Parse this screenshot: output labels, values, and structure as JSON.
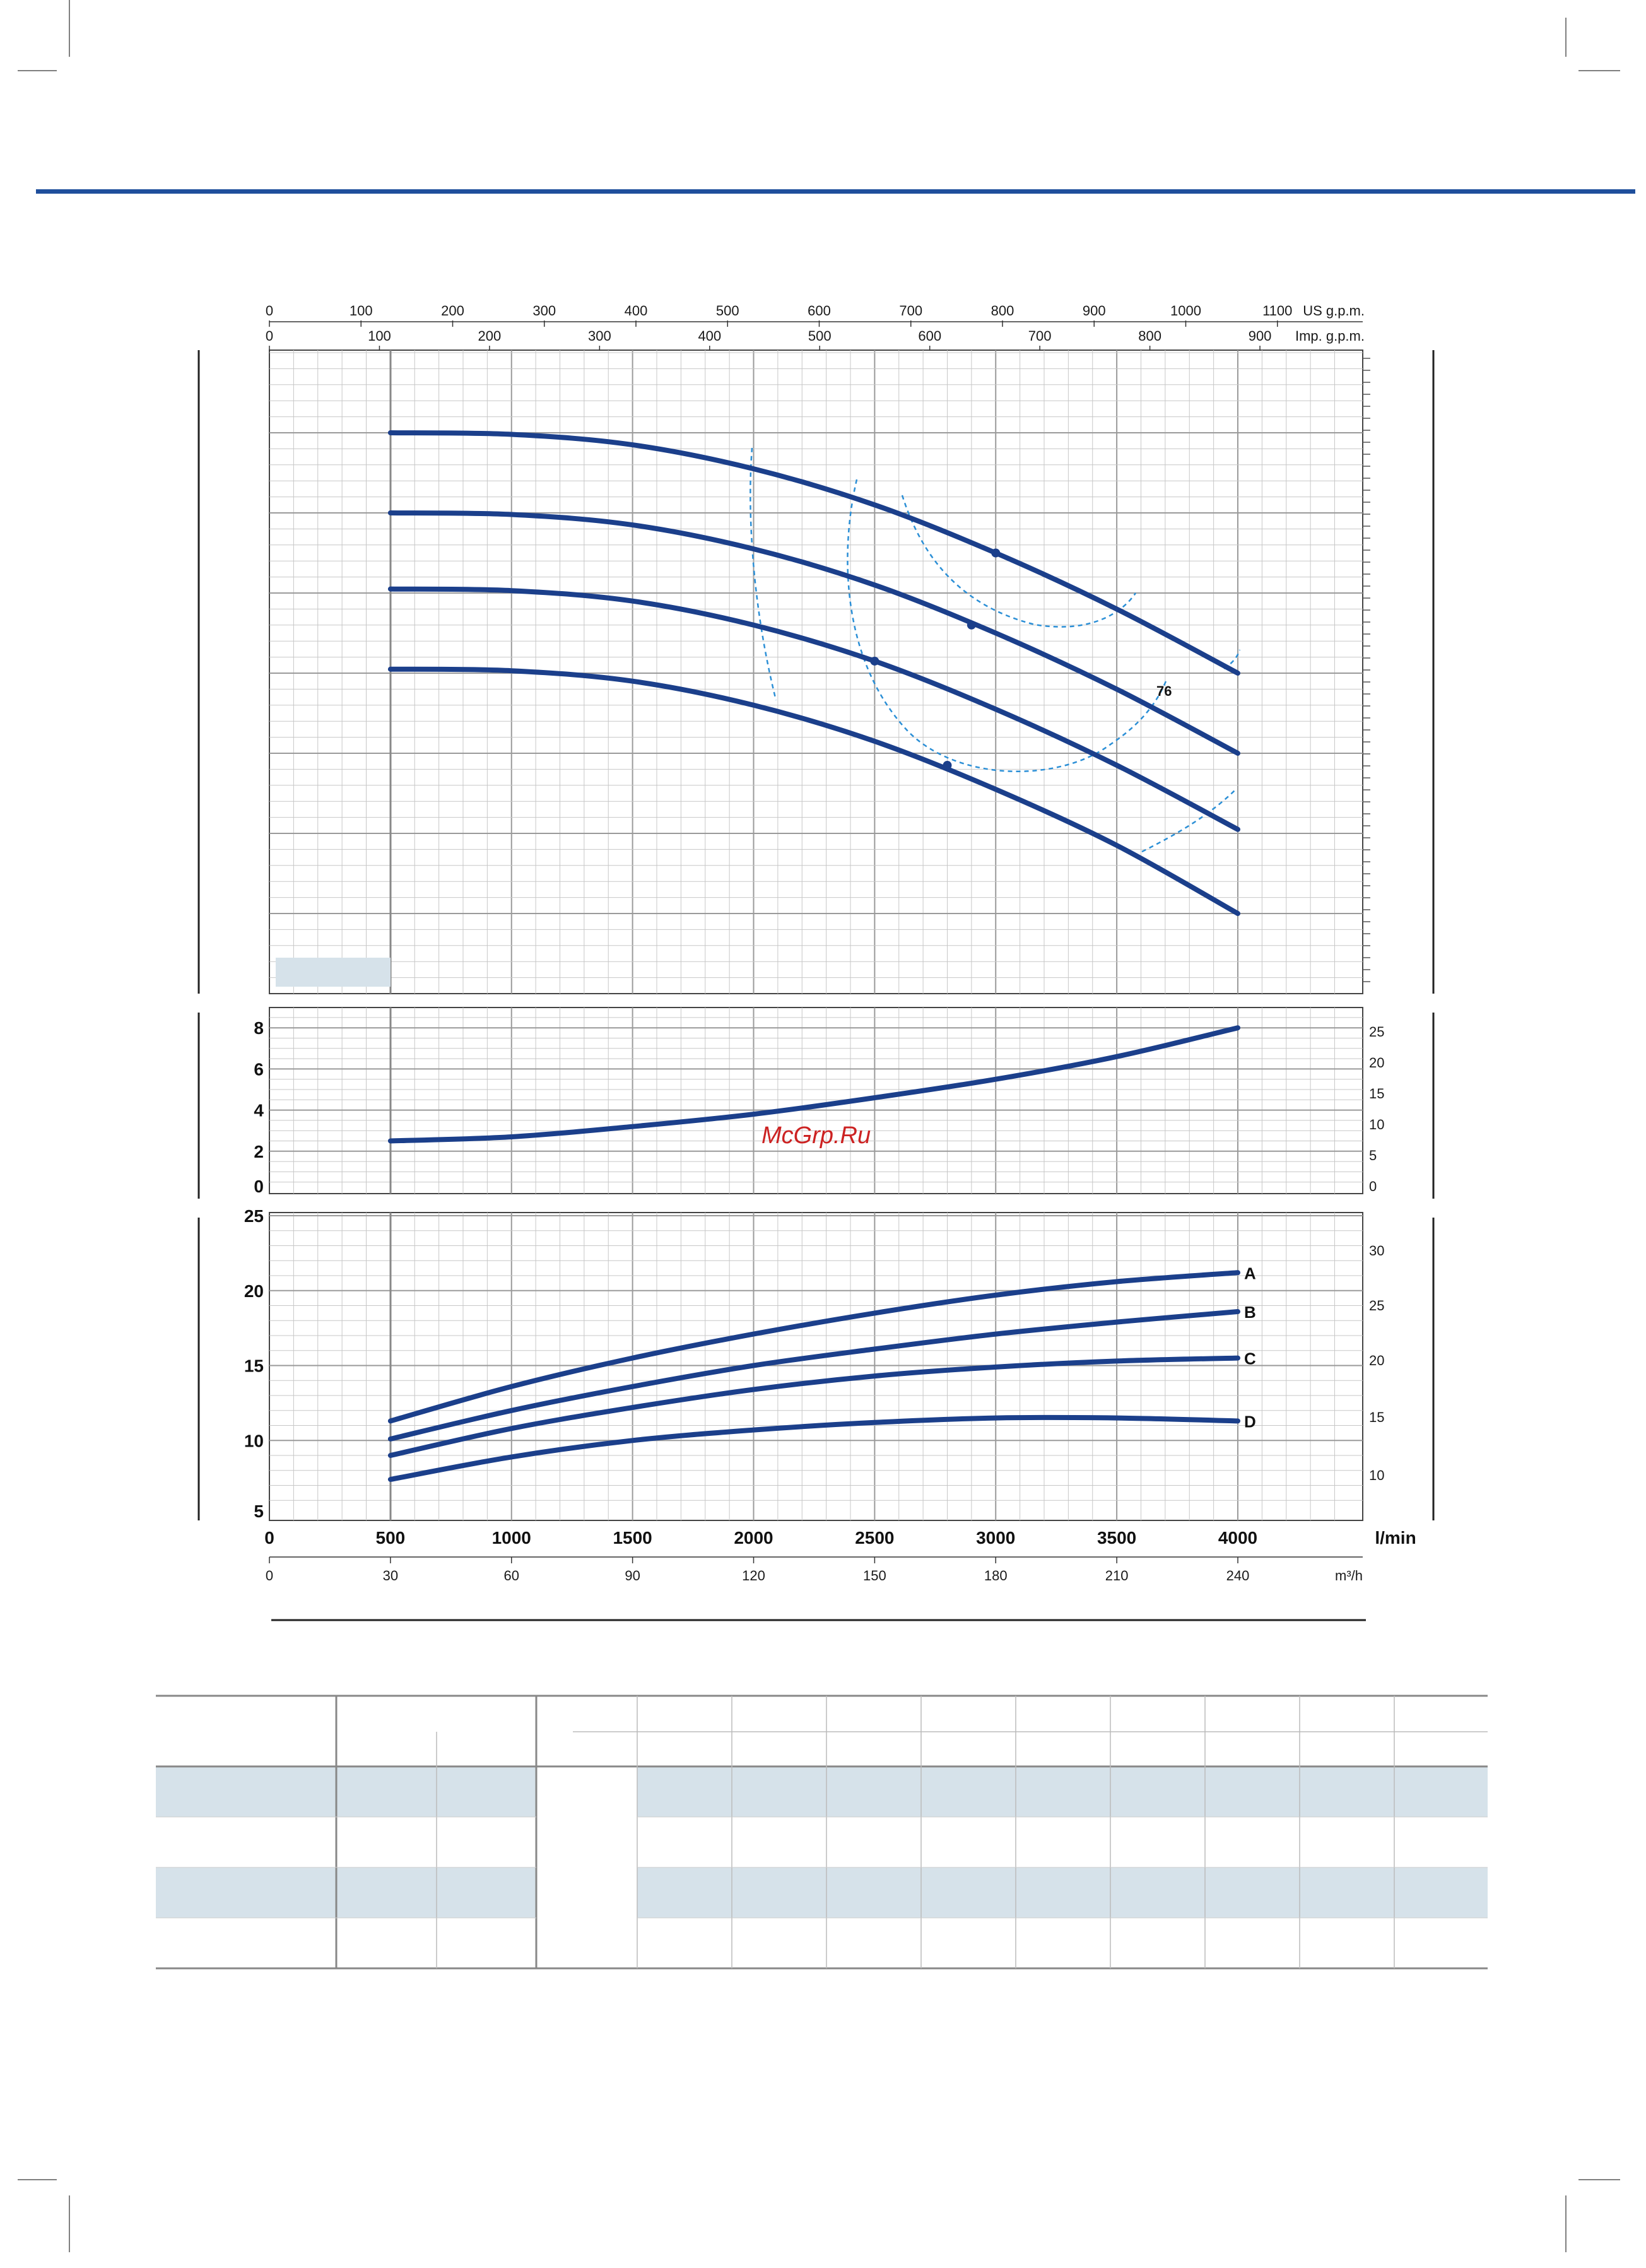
{
  "colors": {
    "curve": "#1b3f8b",
    "efficiency": "#2b8fd6",
    "rule": "#1f4f9c",
    "grid": "#c7c7c7",
    "table_fill": "#d6e2ea",
    "watermark": "#cc2222"
  },
  "watermark": "McGrp.Ru",
  "axes": {
    "us_gpm": {
      "ticks": [
        "0",
        "100",
        "200",
        "300",
        "400",
        "500",
        "600",
        "700",
        "800",
        "900",
        "1000",
        "1100"
      ],
      "unit": "US g.p.m."
    },
    "imp_gpm": {
      "ticks": [
        "0",
        "100",
        "200",
        "300",
        "400",
        "500",
        "600",
        "700",
        "800",
        "900"
      ],
      "unit": "Imp. g.p.m."
    },
    "lmin": {
      "ticks": [
        "0",
        "500",
        "1000",
        "1500",
        "2000",
        "2500",
        "3000",
        "3500",
        "4000"
      ],
      "unit": "l/min"
    },
    "m3h": {
      "ticks": [
        "0",
        "30",
        "60",
        "90",
        "120",
        "150",
        "180",
        "210",
        "240"
      ],
      "unit": "m³/h"
    }
  },
  "chart_data": [
    {
      "type": "line",
      "title": "",
      "xlabel": "l/min",
      "xlim": [
        0,
        4500
      ],
      "ylim": [
        0,
        8
      ],
      "series": [
        {
          "x": [
            500,
            1000,
            1500,
            2000,
            2500,
            3000,
            3500,
            4000
          ],
          "values": [
            7.0,
            6.98,
            6.85,
            6.55,
            6.1,
            5.5,
            4.8,
            4.0
          ]
        },
        {
          "x": [
            500,
            1000,
            1500,
            2000,
            2500,
            3000,
            3500,
            4000
          ],
          "values": [
            6.0,
            5.98,
            5.85,
            5.55,
            5.1,
            4.5,
            3.8,
            3.0
          ]
        },
        {
          "x": [
            500,
            1000,
            1500,
            2000,
            2500,
            3000,
            3500,
            4000
          ],
          "values": [
            5.05,
            5.03,
            4.9,
            4.6,
            4.15,
            3.55,
            2.85,
            2.05
          ]
        },
        {
          "x": [
            500,
            1000,
            1500,
            2000,
            2500,
            3000,
            3500,
            4000
          ],
          "values": [
            4.05,
            4.03,
            3.9,
            3.6,
            3.15,
            2.55,
            1.85,
            1.0
          ]
        }
      ],
      "points": [
        {
          "x": 3000,
          "y": 5.5
        },
        {
          "x": 2900,
          "y": 4.6
        },
        {
          "x": 2500,
          "y": 4.15
        },
        {
          "x": 2800,
          "y": 2.85
        }
      ],
      "annotations": [
        "76"
      ]
    },
    {
      "type": "line",
      "title": "",
      "xlim": [
        0,
        4500
      ],
      "ylim": [
        0,
        9
      ],
      "left_ticks": [
        "8",
        "6",
        "4",
        "2",
        "0"
      ],
      "right_ticks": [
        "25",
        "20",
        "15",
        "10",
        "5",
        "0"
      ],
      "series": [
        {
          "x": [
            500,
            1000,
            1500,
            2000,
            2500,
            3000,
            3500,
            4000
          ],
          "values": [
            2.5,
            2.7,
            3.2,
            3.8,
            4.6,
            5.5,
            6.6,
            8.0
          ]
        }
      ]
    },
    {
      "type": "line",
      "title": "",
      "xlabel": "l/min",
      "xlim": [
        0,
        4500
      ],
      "ylim": [
        5,
        25
      ],
      "left_ticks": [
        "25",
        "20",
        "15",
        "10",
        "5"
      ],
      "right_ticks": [
        "30",
        "25",
        "20",
        "15",
        "10"
      ],
      "series": [
        {
          "name": "A",
          "x": [
            500,
            1000,
            1500,
            2000,
            2500,
            3000,
            3500,
            4000
          ],
          "values": [
            11.3,
            13.6,
            15.5,
            17.1,
            18.5,
            19.7,
            20.6,
            21.2
          ]
        },
        {
          "name": "B",
          "x": [
            500,
            1000,
            1500,
            2000,
            2500,
            3000,
            3500,
            4000
          ],
          "values": [
            10.1,
            12.0,
            13.6,
            15.0,
            16.1,
            17.1,
            17.9,
            18.6
          ]
        },
        {
          "name": "C",
          "x": [
            500,
            1000,
            1500,
            2000,
            2500,
            3000,
            3500,
            4000
          ],
          "values": [
            9.0,
            10.8,
            12.2,
            13.4,
            14.3,
            14.9,
            15.3,
            15.5
          ]
        },
        {
          "name": "D",
          "x": [
            500,
            1000,
            1500,
            2000,
            2500,
            3000,
            3500,
            4000
          ],
          "values": [
            7.4,
            8.9,
            10.0,
            10.7,
            11.2,
            11.5,
            11.5,
            11.3
          ]
        }
      ]
    }
  ]
}
